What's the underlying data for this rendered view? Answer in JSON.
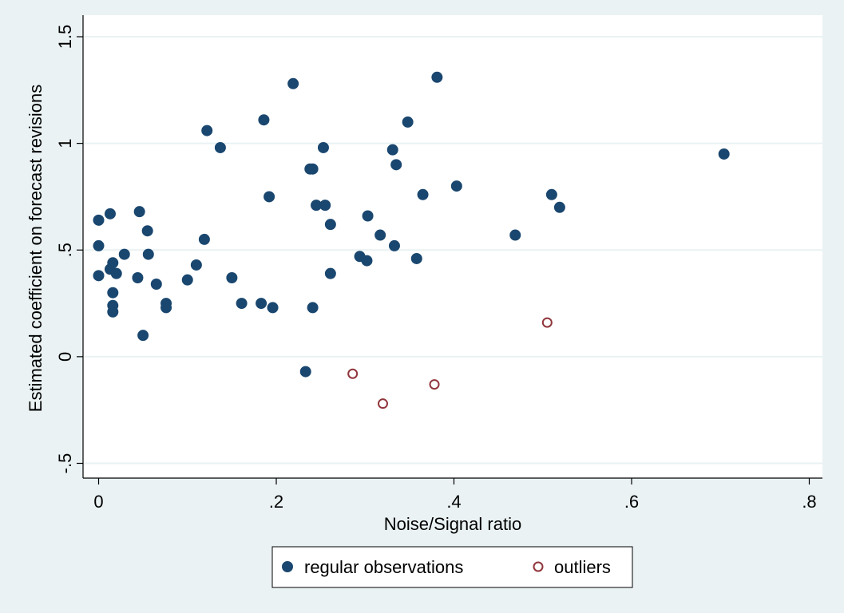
{
  "chart_data": {
    "type": "scatter",
    "xlabel": "Noise/Signal ratio",
    "ylabel": "Estimated coefficient on forecast revisions",
    "xlim": [
      0,
      0.8
    ],
    "ylim": [
      -0.5,
      1.5
    ],
    "x_ticks": [
      {
        "value": 0,
        "label": "0"
      },
      {
        "value": 0.2,
        "label": ".2"
      },
      {
        "value": 0.4,
        "label": ".4"
      },
      {
        "value": 0.6,
        "label": ".6"
      },
      {
        "value": 0.8,
        "label": ".8"
      }
    ],
    "y_ticks": [
      {
        "value": -0.5,
        "label": "-.5"
      },
      {
        "value": 0,
        "label": "0"
      },
      {
        "value": 0.5,
        "label": ".5"
      },
      {
        "value": 1,
        "label": "1"
      },
      {
        "value": 1.5,
        "label": "1.5"
      }
    ],
    "grid": "horizontal",
    "legend_position": "bottom",
    "series": [
      {
        "name": "regular observations",
        "marker": "filled-circle",
        "color": "#1A476F",
        "points": [
          [
            0.0,
            0.64
          ],
          [
            0.0,
            0.52
          ],
          [
            0.0,
            0.38
          ],
          [
            0.013,
            0.67
          ],
          [
            0.013,
            0.41
          ],
          [
            0.016,
            0.44
          ],
          [
            0.016,
            0.3
          ],
          [
            0.016,
            0.24
          ],
          [
            0.016,
            0.21
          ],
          [
            0.02,
            0.39
          ],
          [
            0.029,
            0.48
          ],
          [
            0.044,
            0.37
          ],
          [
            0.046,
            0.68
          ],
          [
            0.05,
            0.1
          ],
          [
            0.055,
            0.59
          ],
          [
            0.056,
            0.48
          ],
          [
            0.065,
            0.34
          ],
          [
            0.076,
            0.25
          ],
          [
            0.076,
            0.23
          ],
          [
            0.1,
            0.36
          ],
          [
            0.11,
            0.43
          ],
          [
            0.119,
            0.55
          ],
          [
            0.122,
            1.06
          ],
          [
            0.137,
            0.98
          ],
          [
            0.15,
            0.37
          ],
          [
            0.161,
            0.25
          ],
          [
            0.183,
            0.25
          ],
          [
            0.186,
            1.11
          ],
          [
            0.192,
            0.75
          ],
          [
            0.196,
            0.23
          ],
          [
            0.219,
            1.28
          ],
          [
            0.233,
            -0.07
          ],
          [
            0.238,
            0.88
          ],
          [
            0.241,
            0.88
          ],
          [
            0.241,
            0.23
          ],
          [
            0.245,
            0.71
          ],
          [
            0.253,
            0.98
          ],
          [
            0.255,
            0.71
          ],
          [
            0.261,
            0.62
          ],
          [
            0.261,
            0.39
          ],
          [
            0.294,
            0.47
          ],
          [
            0.302,
            0.45
          ],
          [
            0.303,
            0.66
          ],
          [
            0.317,
            0.57
          ],
          [
            0.331,
            0.97
          ],
          [
            0.333,
            0.52
          ],
          [
            0.335,
            0.9
          ],
          [
            0.348,
            1.1
          ],
          [
            0.358,
            0.46
          ],
          [
            0.365,
            0.76
          ],
          [
            0.381,
            1.31
          ],
          [
            0.403,
            0.8
          ],
          [
            0.469,
            0.57
          ],
          [
            0.51,
            0.76
          ],
          [
            0.519,
            0.7
          ],
          [
            0.704,
            0.95
          ]
        ]
      },
      {
        "name": "outliers",
        "marker": "hollow-circle",
        "color": "#90353B",
        "points": [
          [
            0.286,
            -0.08
          ],
          [
            0.32,
            -0.22
          ],
          [
            0.378,
            -0.13
          ],
          [
            0.505,
            0.16
          ]
        ]
      }
    ]
  }
}
